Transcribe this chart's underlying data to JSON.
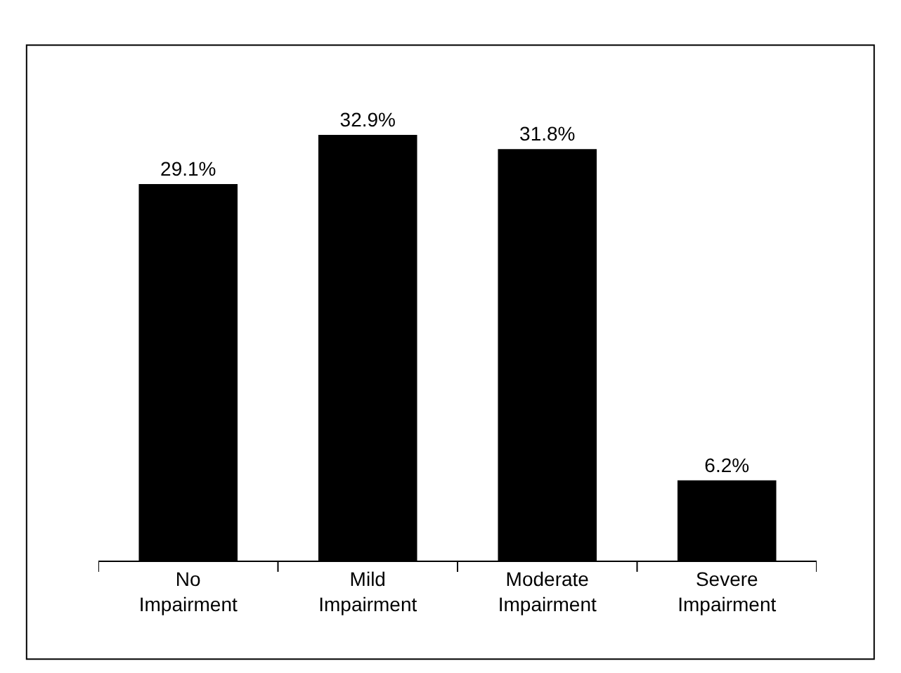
{
  "chart_data": {
    "type": "bar",
    "categories": [
      "No Impairment",
      "Mild Impairment",
      "Moderate Impairment",
      "Severe Impairment"
    ],
    "values": [
      29.1,
      32.9,
      31.8,
      6.2
    ],
    "value_labels": [
      "29.1%",
      "32.9%",
      "31.8%",
      "6.2%"
    ],
    "color": "#000000",
    "legend": false
  }
}
